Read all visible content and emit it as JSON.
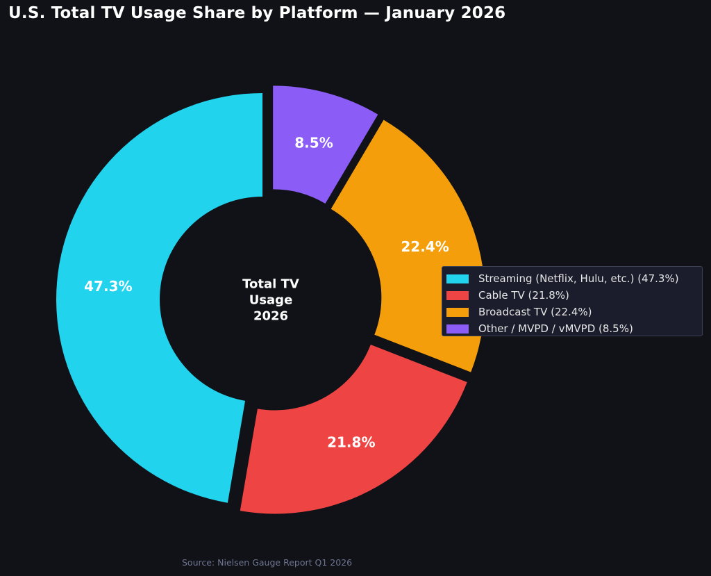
{
  "chart_data": {
    "type": "pie",
    "variant": "donut",
    "title": "U.S. Total TV Usage Share by Platform — January 2026",
    "center_label": "Total TV\nUsage\n2026",
    "slices": [
      {
        "name": "Streaming (Netflix, Hulu, etc.)",
        "value": 47.3,
        "label": "47.3%",
        "color": "#22d3ee",
        "legend": "Streaming (Netflix, Hulu, etc.) (47.3%)"
      },
      {
        "name": "Cable TV",
        "value": 21.8,
        "label": "21.8%",
        "color": "#ef4444",
        "legend": "Cable TV (21.8%)"
      },
      {
        "name": "Broadcast TV",
        "value": 22.4,
        "label": "22.4%",
        "color": "#f59e0b",
        "legend": "Broadcast TV (22.4%)"
      },
      {
        "name": "Other / MVPD / vMVPD",
        "value": 8.5,
        "label": "8.5%",
        "color": "#8b5cf6",
        "legend": "Other / MVPD / vMVPD (8.5%)"
      }
    ],
    "start": "top",
    "direction": "counterclockwise",
    "exploded": true,
    "legend_position": "right",
    "source": "Source: Nielsen Gauge Report Q1 2026"
  },
  "colors": {
    "background": "#111217",
    "legend_background": "#1b1d2c",
    "legend_border": "#3d4154",
    "source_text": "#6e7591"
  }
}
